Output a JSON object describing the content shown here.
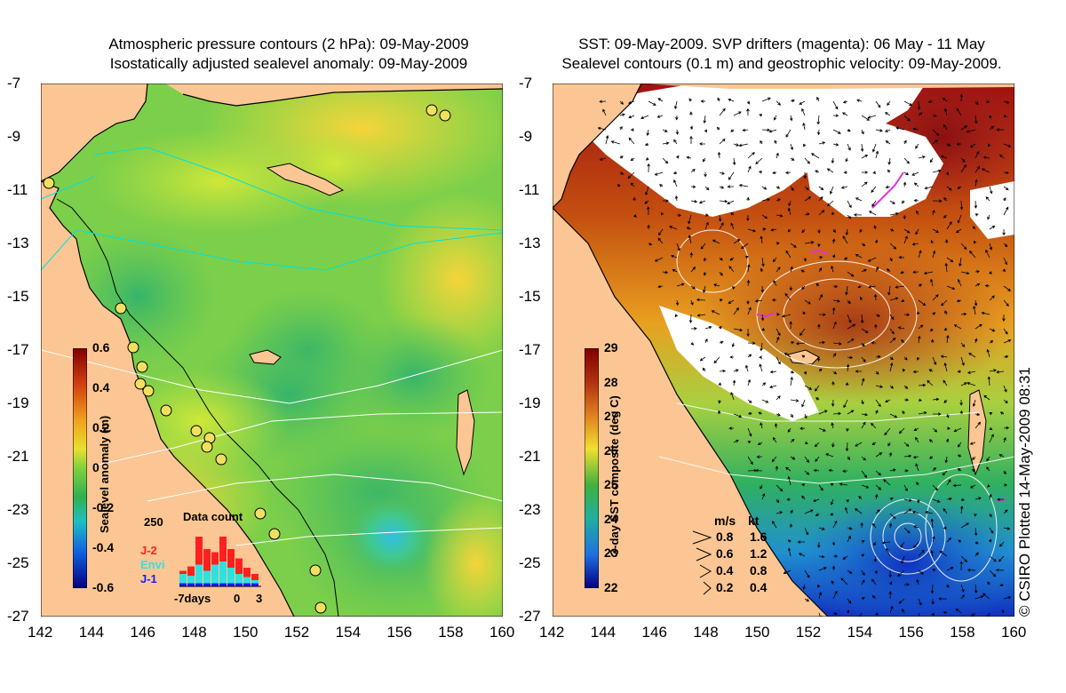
{
  "left_panel": {
    "title_line1": "Atmospheric pressure contours (2 hPa): 09-May-2009",
    "title_line2": "Isostatically adjusted sealevel anomaly: 09-May-2009",
    "colorbar": {
      "title": "Sealevel anomaly (m)",
      "ticks": [
        "0.6",
        "0.4",
        "0.2",
        "0",
        "-0.2",
        "-0.4",
        "-0.6"
      ],
      "range": [
        -0.6,
        0.6
      ]
    },
    "data_count": {
      "title": "Data count",
      "ymax_label": "250",
      "x_labels": [
        "-7days",
        "0",
        "3"
      ],
      "legend": [
        {
          "label": "J-2",
          "color": "#ff2020"
        },
        {
          "label": "Envi",
          "color": "#30e0e0"
        },
        {
          "label": "J-1",
          "color": "#1a1aff"
        }
      ],
      "bars": [
        {
          "j2": 0.05,
          "envi": 0.15,
          "j1": 0.05
        },
        {
          "j2": 0.15,
          "envi": 0.12,
          "j1": 0.05
        },
        {
          "j2": 0.45,
          "envi": 0.3,
          "j1": 0.05
        },
        {
          "j2": 0.35,
          "envi": 0.2,
          "j1": 0.05
        },
        {
          "j2": 0.2,
          "envi": 0.3,
          "j1": 0.05
        },
        {
          "j2": 0.4,
          "envi": 0.35,
          "j1": 0.05
        },
        {
          "j2": 0.3,
          "envi": 0.25,
          "j1": 0.05
        },
        {
          "j2": 0.25,
          "envi": 0.15,
          "j1": 0.05
        },
        {
          "j2": 0.15,
          "envi": 0.1,
          "j1": 0.05
        },
        {
          "j2": 0.1,
          "envi": 0.05,
          "j1": 0.05
        }
      ]
    }
  },
  "right_panel": {
    "title_line1": "SST: 09-May-2009. SVP drifters (magenta): 06 May - 11 May",
    "title_line2": "Sealevel contours (0.1 m) and geostrophic velocity: 09-May-2009.",
    "colorbar": {
      "title": "3-day SST composite (deg C)",
      "ticks": [
        "29",
        "28",
        "27",
        "26",
        "25",
        "24",
        "23",
        "22"
      ],
      "range": [
        22,
        29
      ]
    },
    "velocity_legend": {
      "header_ms": "m/s",
      "header_kt": "kt",
      "rows": [
        {
          "ms": "0.8",
          "kt": "1.6"
        },
        {
          "ms": "0.6",
          "kt": "1.2"
        },
        {
          "ms": "0.4",
          "kt": "0.8"
        },
        {
          "ms": "0.2",
          "kt": "0.4"
        }
      ]
    },
    "copyright": "© CSIRO Plotted 14-May-2009 08:31"
  },
  "axes": {
    "x_ticks": [
      "142",
      "144",
      "146",
      "148",
      "150",
      "152",
      "154",
      "156",
      "158",
      "160"
    ],
    "y_ticks": [
      "-7",
      "-9",
      "-11",
      "-13",
      "-15",
      "-17",
      "-19",
      "-21",
      "-23",
      "-25",
      "-27"
    ],
    "lon_range": [
      142,
      160
    ],
    "lat_range": [
      -27,
      -7
    ]
  },
  "colors": {
    "land": "#fbc693",
    "coast": "#000000",
    "pressure_contour": "#00e0e0",
    "sealevel_contour": "#ffffff",
    "drifter": "#e030e0",
    "station_fill": "#f0e060"
  }
}
